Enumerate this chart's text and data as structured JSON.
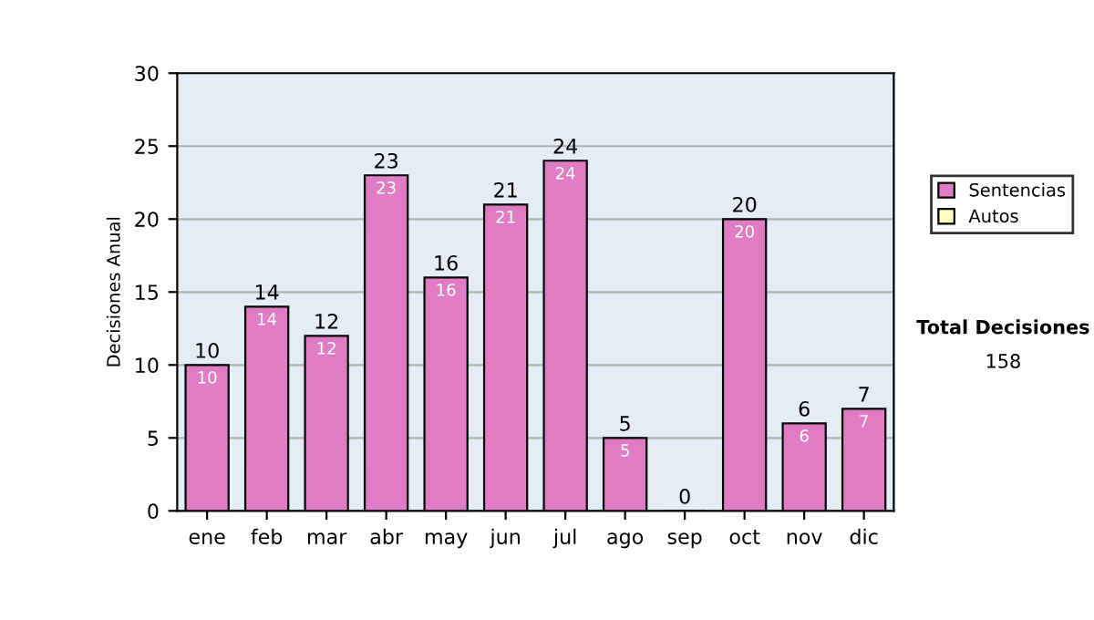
{
  "chart_data": {
    "type": "bar",
    "ylabel": "Decisiones Anual",
    "categories": [
      "ene",
      "feb",
      "mar",
      "abr",
      "may",
      "jun",
      "jul",
      "ago",
      "sep",
      "oct",
      "nov",
      "dic"
    ],
    "stacked": true,
    "series": [
      {
        "name": "Sentencias",
        "color": "#e07cc4",
        "values": [
          10,
          14,
          12,
          23,
          16,
          21,
          24,
          5,
          0,
          20,
          6,
          7
        ],
        "value_labels": [
          "10",
          "14",
          "12",
          "23",
          "16",
          "21",
          "24",
          "5",
          null,
          "20",
          "6",
          "7"
        ]
      },
      {
        "name": "Autos",
        "color": "#ffffc0",
        "values": [
          null,
          null,
          null,
          null,
          null,
          null,
          null,
          null,
          null,
          null,
          null,
          null
        ]
      }
    ],
    "totals": [
      "10",
      "14",
      "12",
      "23",
      "16",
      "21",
      "24",
      "5",
      "0",
      "20",
      "6",
      "7"
    ],
    "ylim": [
      0,
      30
    ],
    "yticks": [
      0,
      5,
      10,
      15,
      20,
      25,
      30
    ],
    "grid": "y",
    "legend": "right",
    "annotations": [
      "Total Decisiones",
      "158"
    ]
  }
}
